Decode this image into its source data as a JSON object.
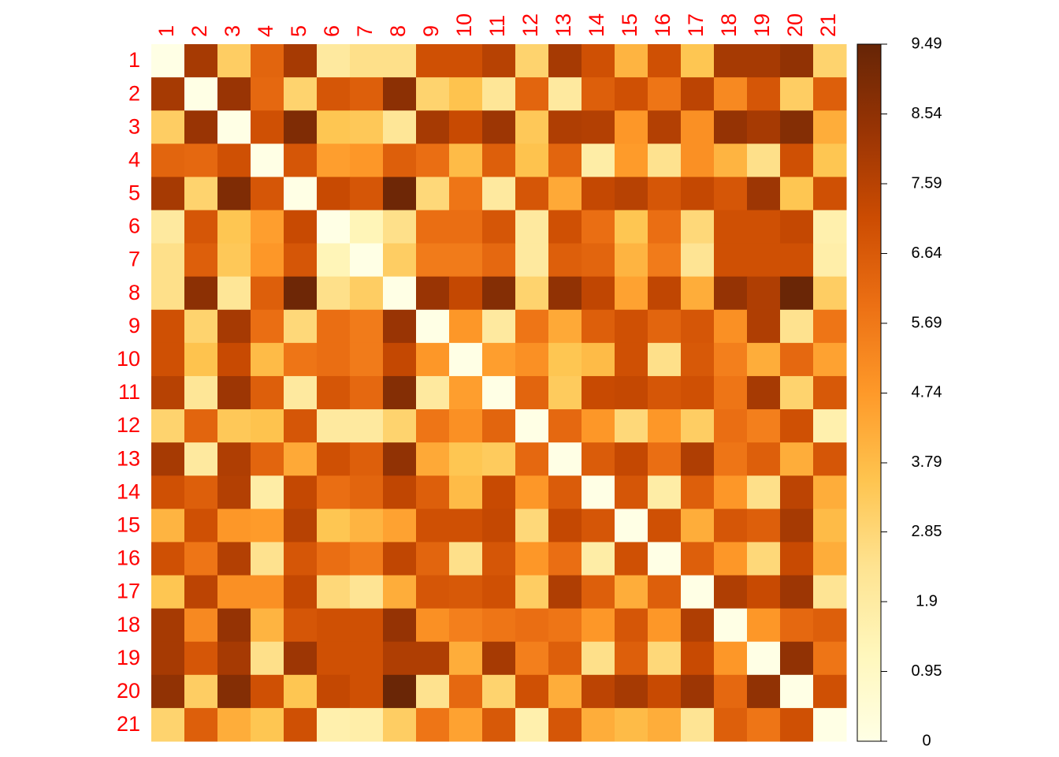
{
  "chart_data": {
    "type": "heatmap",
    "rows": [
      "1",
      "2",
      "3",
      "4",
      "5",
      "6",
      "7",
      "8",
      "9",
      "10",
      "11",
      "12",
      "13",
      "14",
      "15",
      "16",
      "17",
      "18",
      "19",
      "20",
      "21"
    ],
    "columns": [
      "1",
      "2",
      "3",
      "4",
      "5",
      "6",
      "7",
      "8",
      "9",
      "10",
      "11",
      "12",
      "13",
      "14",
      "15",
      "16",
      "17",
      "18",
      "19",
      "20",
      "21"
    ],
    "values": [
      [
        0,
        8.0,
        3.2,
        6.3,
        8.0,
        2.0,
        2.5,
        2.5,
        7.0,
        7.0,
        7.6,
        3.0,
        8.0,
        7.0,
        4.0,
        7.0,
        3.5,
        8.0,
        8.0,
        8.5,
        3.0
      ],
      [
        8.0,
        0,
        8.3,
        6.2,
        3.0,
        6.8,
        6.5,
        8.6,
        3.0,
        3.6,
        2.2,
        6.3,
        2.0,
        6.5,
        7.0,
        5.8,
        7.5,
        5.2,
        6.8,
        3.2,
        6.5
      ],
      [
        3.2,
        8.3,
        0,
        7.0,
        8.9,
        3.5,
        3.4,
        2.2,
        8.0,
        7.2,
        8.2,
        3.4,
        7.8,
        7.7,
        4.8,
        7.7,
        5.0,
        8.4,
        8.0,
        8.8,
        4.2
      ],
      [
        6.3,
        6.2,
        7.0,
        0,
        6.8,
        4.6,
        4.8,
        6.5,
        6.0,
        3.8,
        6.5,
        3.6,
        6.3,
        1.8,
        4.7,
        2.4,
        5.0,
        4.0,
        2.5,
        7.0,
        3.5
      ],
      [
        8.0,
        3.0,
        8.9,
        6.8,
        0,
        7.2,
        6.8,
        9.3,
        2.8,
        5.8,
        2.0,
        6.8,
        4.3,
        7.3,
        7.6,
        6.8,
        7.3,
        6.8,
        8.2,
        3.5,
        7.0
      ],
      [
        2.0,
        6.8,
        3.5,
        4.6,
        7.2,
        0,
        1.3,
        2.5,
        6.0,
        6.0,
        6.8,
        2.0,
        7.0,
        6.0,
        3.5,
        6.0,
        2.8,
        7.0,
        7.0,
        7.3,
        1.6
      ],
      [
        2.5,
        6.5,
        3.4,
        4.8,
        6.8,
        1.3,
        0,
        3.2,
        5.6,
        5.6,
        6.2,
        2.0,
        6.5,
        6.3,
        4.0,
        5.6,
        2.3,
        7.0,
        7.0,
        7.0,
        1.7
      ],
      [
        2.5,
        8.6,
        2.2,
        6.5,
        9.3,
        2.5,
        3.2,
        0,
        8.3,
        7.3,
        8.8,
        3.0,
        8.5,
        7.4,
        4.5,
        7.4,
        4.2,
        8.4,
        7.8,
        9.4,
        3.2
      ],
      [
        7.0,
        3.0,
        8.0,
        6.0,
        2.8,
        6.0,
        5.6,
        8.3,
        0,
        4.8,
        2.0,
        5.8,
        4.3,
        6.5,
        7.0,
        6.3,
        6.8,
        5.0,
        7.8,
        2.4,
        5.8
      ],
      [
        7.0,
        3.6,
        7.2,
        3.8,
        5.8,
        6.0,
        5.6,
        7.3,
        4.8,
        0,
        4.6,
        5.0,
        3.5,
        3.8,
        7.0,
        2.5,
        6.7,
        5.5,
        4.2,
        6.2,
        4.5
      ],
      [
        7.6,
        2.2,
        8.2,
        6.5,
        2.0,
        6.8,
        6.2,
        8.8,
        2.0,
        4.6,
        0,
        6.3,
        3.3,
        7.2,
        7.3,
        6.8,
        7.0,
        5.8,
        8.0,
        3.0,
        6.7
      ],
      [
        3.0,
        6.3,
        3.4,
        3.6,
        6.8,
        2.0,
        2.0,
        3.0,
        5.8,
        5.0,
        6.3,
        0,
        6.2,
        4.8,
        2.8,
        4.8,
        3.2,
        6.0,
        5.5,
        7.0,
        1.6
      ],
      [
        8.0,
        2.0,
        7.8,
        6.3,
        4.3,
        7.0,
        6.5,
        8.5,
        4.3,
        3.5,
        3.3,
        6.2,
        0,
        6.6,
        7.3,
        6.0,
        7.8,
        5.8,
        6.5,
        4.2,
        6.8
      ],
      [
        7.0,
        6.5,
        7.7,
        1.8,
        7.3,
        6.0,
        6.3,
        7.4,
        6.5,
        3.8,
        7.2,
        4.8,
        6.6,
        0,
        6.8,
        1.8,
        6.5,
        4.8,
        2.5,
        7.5,
        4.2
      ],
      [
        4.0,
        7.0,
        4.8,
        4.7,
        7.6,
        3.5,
        4.0,
        4.5,
        7.0,
        7.0,
        7.3,
        2.8,
        7.3,
        6.8,
        0,
        7.0,
        4.2,
        6.8,
        6.5,
        8.0,
        3.8
      ],
      [
        7.0,
        5.8,
        7.7,
        2.4,
        6.8,
        6.0,
        5.6,
        7.4,
        6.3,
        2.5,
        6.8,
        4.8,
        6.0,
        1.8,
        7.0,
        0,
        6.5,
        4.8,
        2.8,
        7.2,
        4.2
      ],
      [
        3.5,
        7.5,
        5.0,
        5.0,
        7.3,
        2.8,
        2.3,
        4.2,
        6.8,
        6.7,
        7.0,
        3.2,
        7.8,
        6.5,
        4.2,
        6.5,
        0,
        7.8,
        7.2,
        8.2,
        2.3
      ],
      [
        8.0,
        5.2,
        8.4,
        4.0,
        6.8,
        7.0,
        7.0,
        8.4,
        5.0,
        5.5,
        5.8,
        6.0,
        5.8,
        4.8,
        6.8,
        4.8,
        7.8,
        0,
        4.8,
        6.2,
        6.5
      ],
      [
        8.0,
        6.8,
        8.0,
        2.5,
        8.2,
        7.0,
        7.0,
        7.8,
        7.8,
        4.2,
        8.0,
        5.5,
        6.5,
        2.5,
        6.5,
        2.8,
        7.2,
        4.8,
        0,
        8.5,
        5.8
      ],
      [
        8.5,
        3.2,
        8.8,
        7.0,
        3.5,
        7.3,
        7.0,
        9.4,
        2.4,
        6.2,
        3.0,
        7.0,
        4.2,
        7.5,
        8.0,
        7.2,
        8.2,
        6.2,
        8.5,
        0,
        7.0
      ],
      [
        3.0,
        6.5,
        4.2,
        3.5,
        7.0,
        1.6,
        1.7,
        3.2,
        5.8,
        4.5,
        6.7,
        1.6,
        6.8,
        4.2,
        3.8,
        4.2,
        2.3,
        6.5,
        5.8,
        7.0,
        0
      ]
    ],
    "colors": [
      "#ffffe5",
      "#fff7bc",
      "#fee391",
      "#fec44f",
      "#fe9929",
      "#ec7014",
      "#cc4c02",
      "#993404",
      "#662506"
    ],
    "clim": [
      0,
      9.49
    ],
    "cticks": [
      0,
      0.95,
      1.9,
      2.85,
      3.79,
      4.74,
      5.69,
      6.64,
      7.59,
      8.54,
      9.49
    ]
  }
}
